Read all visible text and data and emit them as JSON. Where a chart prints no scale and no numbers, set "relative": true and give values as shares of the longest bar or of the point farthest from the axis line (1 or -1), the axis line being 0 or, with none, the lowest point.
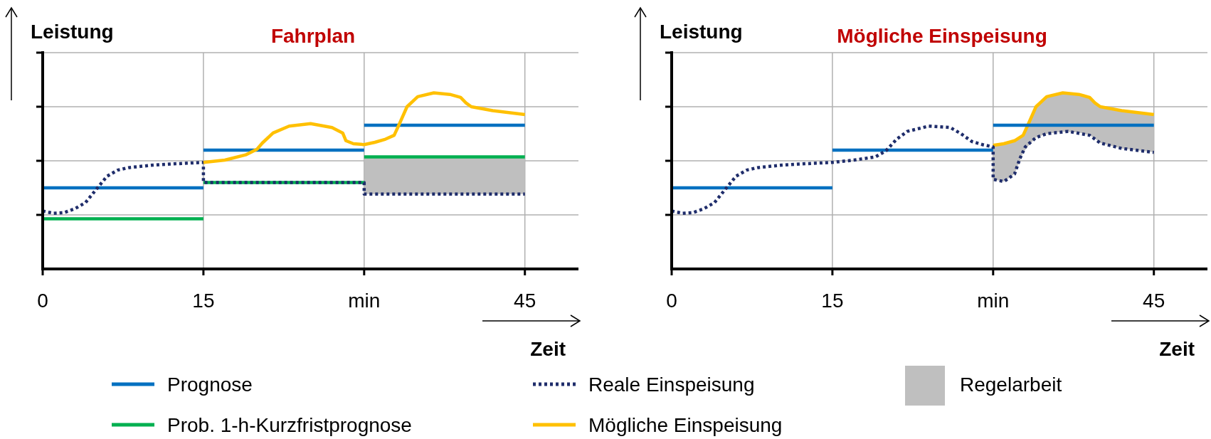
{
  "chart_data": [
    {
      "type": "line",
      "title": "Fahrplan",
      "xlabel": "Zeit",
      "ylabel": "Leistung",
      "relative": true,
      "xlim": [
        0,
        50
      ],
      "xticks": [
        0,
        15,
        {
          "value": 30,
          "label": "min"
        },
        45
      ],
      "grid": true,
      "legend": "bottom",
      "annotations": [
        "Regelarbeit"
      ],
      "series": [
        {
          "name": "Prognose",
          "color": "#0070c0",
          "x": [
            0,
            15
          ],
          "values": [
            0.46,
            0.46
          ]
        },
        {
          "color": "#0070c0",
          "x": [
            15,
            30
          ],
          "values": [
            0.675,
            0.675
          ]
        },
        {
          "color": "#0070c0",
          "x": [
            30,
            45
          ],
          "values": [
            0.816,
            0.816
          ]
        },
        {
          "name": "Prob. 1-h-Kurzfristprognose",
          "color": "#00b050",
          "x": [
            0,
            15
          ],
          "values": [
            0.285,
            0.285
          ]
        },
        {
          "color": "#00b050",
          "x": [
            15,
            30
          ],
          "values": [
            0.491,
            0.491
          ]
        },
        {
          "color": "#00b050",
          "x": [
            30,
            45
          ],
          "values": [
            0.636,
            0.636
          ],
          "lower": [
            0.425,
            0.425
          ],
          "upper": [
            0.636,
            0.636
          ]
        },
        {
          "name": "Reale Einspeisung",
          "color": "#1f2d6b",
          "line_style": "dotted",
          "x": [
            0,
            1,
            2,
            3,
            4,
            5,
            6,
            7,
            8,
            10,
            12,
            15,
            15,
            30,
            30,
            45
          ],
          "values": [
            0.329,
            0.316,
            0.32,
            0.342,
            0.377,
            0.452,
            0.526,
            0.561,
            0.575,
            0.588,
            0.596,
            0.605,
            0.491,
            0.491,
            0.425,
            0.425
          ]
        },
        {
          "name": "Mögliche Einspeisung",
          "color": "#ffc000",
          "x": [
            15,
            17,
            19,
            20,
            20.5,
            21.5,
            23,
            25,
            27,
            28,
            28.3,
            29,
            30,
            31,
            32,
            32.8,
            33.3,
            34,
            35,
            36.5,
            38,
            39,
            39.5,
            40,
            42,
            45
          ],
          "values": [
            0.605,
            0.618,
            0.649,
            0.68,
            0.715,
            0.772,
            0.811,
            0.825,
            0.803,
            0.772,
            0.728,
            0.711,
            0.706,
            0.719,
            0.737,
            0.759,
            0.825,
            0.921,
            0.978,
            1.0,
            0.991,
            0.974,
            0.943,
            0.921,
            0.899,
            0.877
          ]
        }
      ]
    },
    {
      "type": "line",
      "title": "Mögliche Einspeisung",
      "xlabel": "Zeit",
      "ylabel": "Leistung",
      "relative": true,
      "xlim": [
        0,
        50
      ],
      "xticks": [
        0,
        15,
        {
          "value": 30,
          "label": "min"
        },
        45
      ],
      "grid": true,
      "series": [
        {
          "color": "#ffc000",
          "x": [
            30,
            31,
            32,
            32.8,
            33.3,
            34,
            35,
            36.5,
            38,
            39,
            39.5,
            40,
            42,
            45
          ],
          "values": [
            0.702,
            0.711,
            0.728,
            0.759,
            0.825,
            0.921,
            0.978,
            1.0,
            0.991,
            0.974,
            0.943,
            0.921,
            0.899,
            0.877
          ],
          "upper": [
            0.702,
            0.711,
            0.728,
            0.759,
            0.825,
            0.921,
            0.978,
            1.0,
            0.991,
            0.974,
            0.943,
            0.921,
            0.899,
            0.877
          ],
          "lower": [
            0.509,
            0.496,
            0.539,
            0.66,
            0.7,
            0.746,
            0.768,
            0.78,
            0.775,
            0.759,
            0.74,
            0.715,
            0.684,
            0.662
          ]
        },
        {
          "color": "#0070c0",
          "x": [
            0,
            15
          ],
          "values": [
            0.46,
            0.46
          ]
        },
        {
          "color": "#0070c0",
          "x": [
            15,
            30
          ],
          "values": [
            0.675,
            0.675
          ]
        },
        {
          "color": "#0070c0",
          "x": [
            30,
            45
          ],
          "values": [
            0.816,
            0.816
          ]
        },
        {
          "color": "#1f2d6b",
          "line_style": "dotted",
          "x": [
            0,
            1,
            2,
            3,
            4,
            5,
            6,
            7,
            8,
            10,
            12,
            15,
            17,
            19,
            20,
            21,
            22,
            24,
            26,
            27,
            28,
            29,
            30,
            30,
            31,
            32,
            32.5,
            33,
            34,
            35,
            37,
            39,
            40,
            42,
            45
          ],
          "values": [
            0.329,
            0.316,
            0.32,
            0.342,
            0.377,
            0.452,
            0.526,
            0.561,
            0.575,
            0.588,
            0.596,
            0.605,
            0.618,
            0.636,
            0.671,
            0.737,
            0.781,
            0.811,
            0.803,
            0.768,
            0.724,
            0.706,
            0.693,
            0.509,
            0.496,
            0.539,
            0.627,
            0.693,
            0.746,
            0.768,
            0.781,
            0.759,
            0.715,
            0.684,
            0.662
          ]
        }
      ]
    }
  ]
}
